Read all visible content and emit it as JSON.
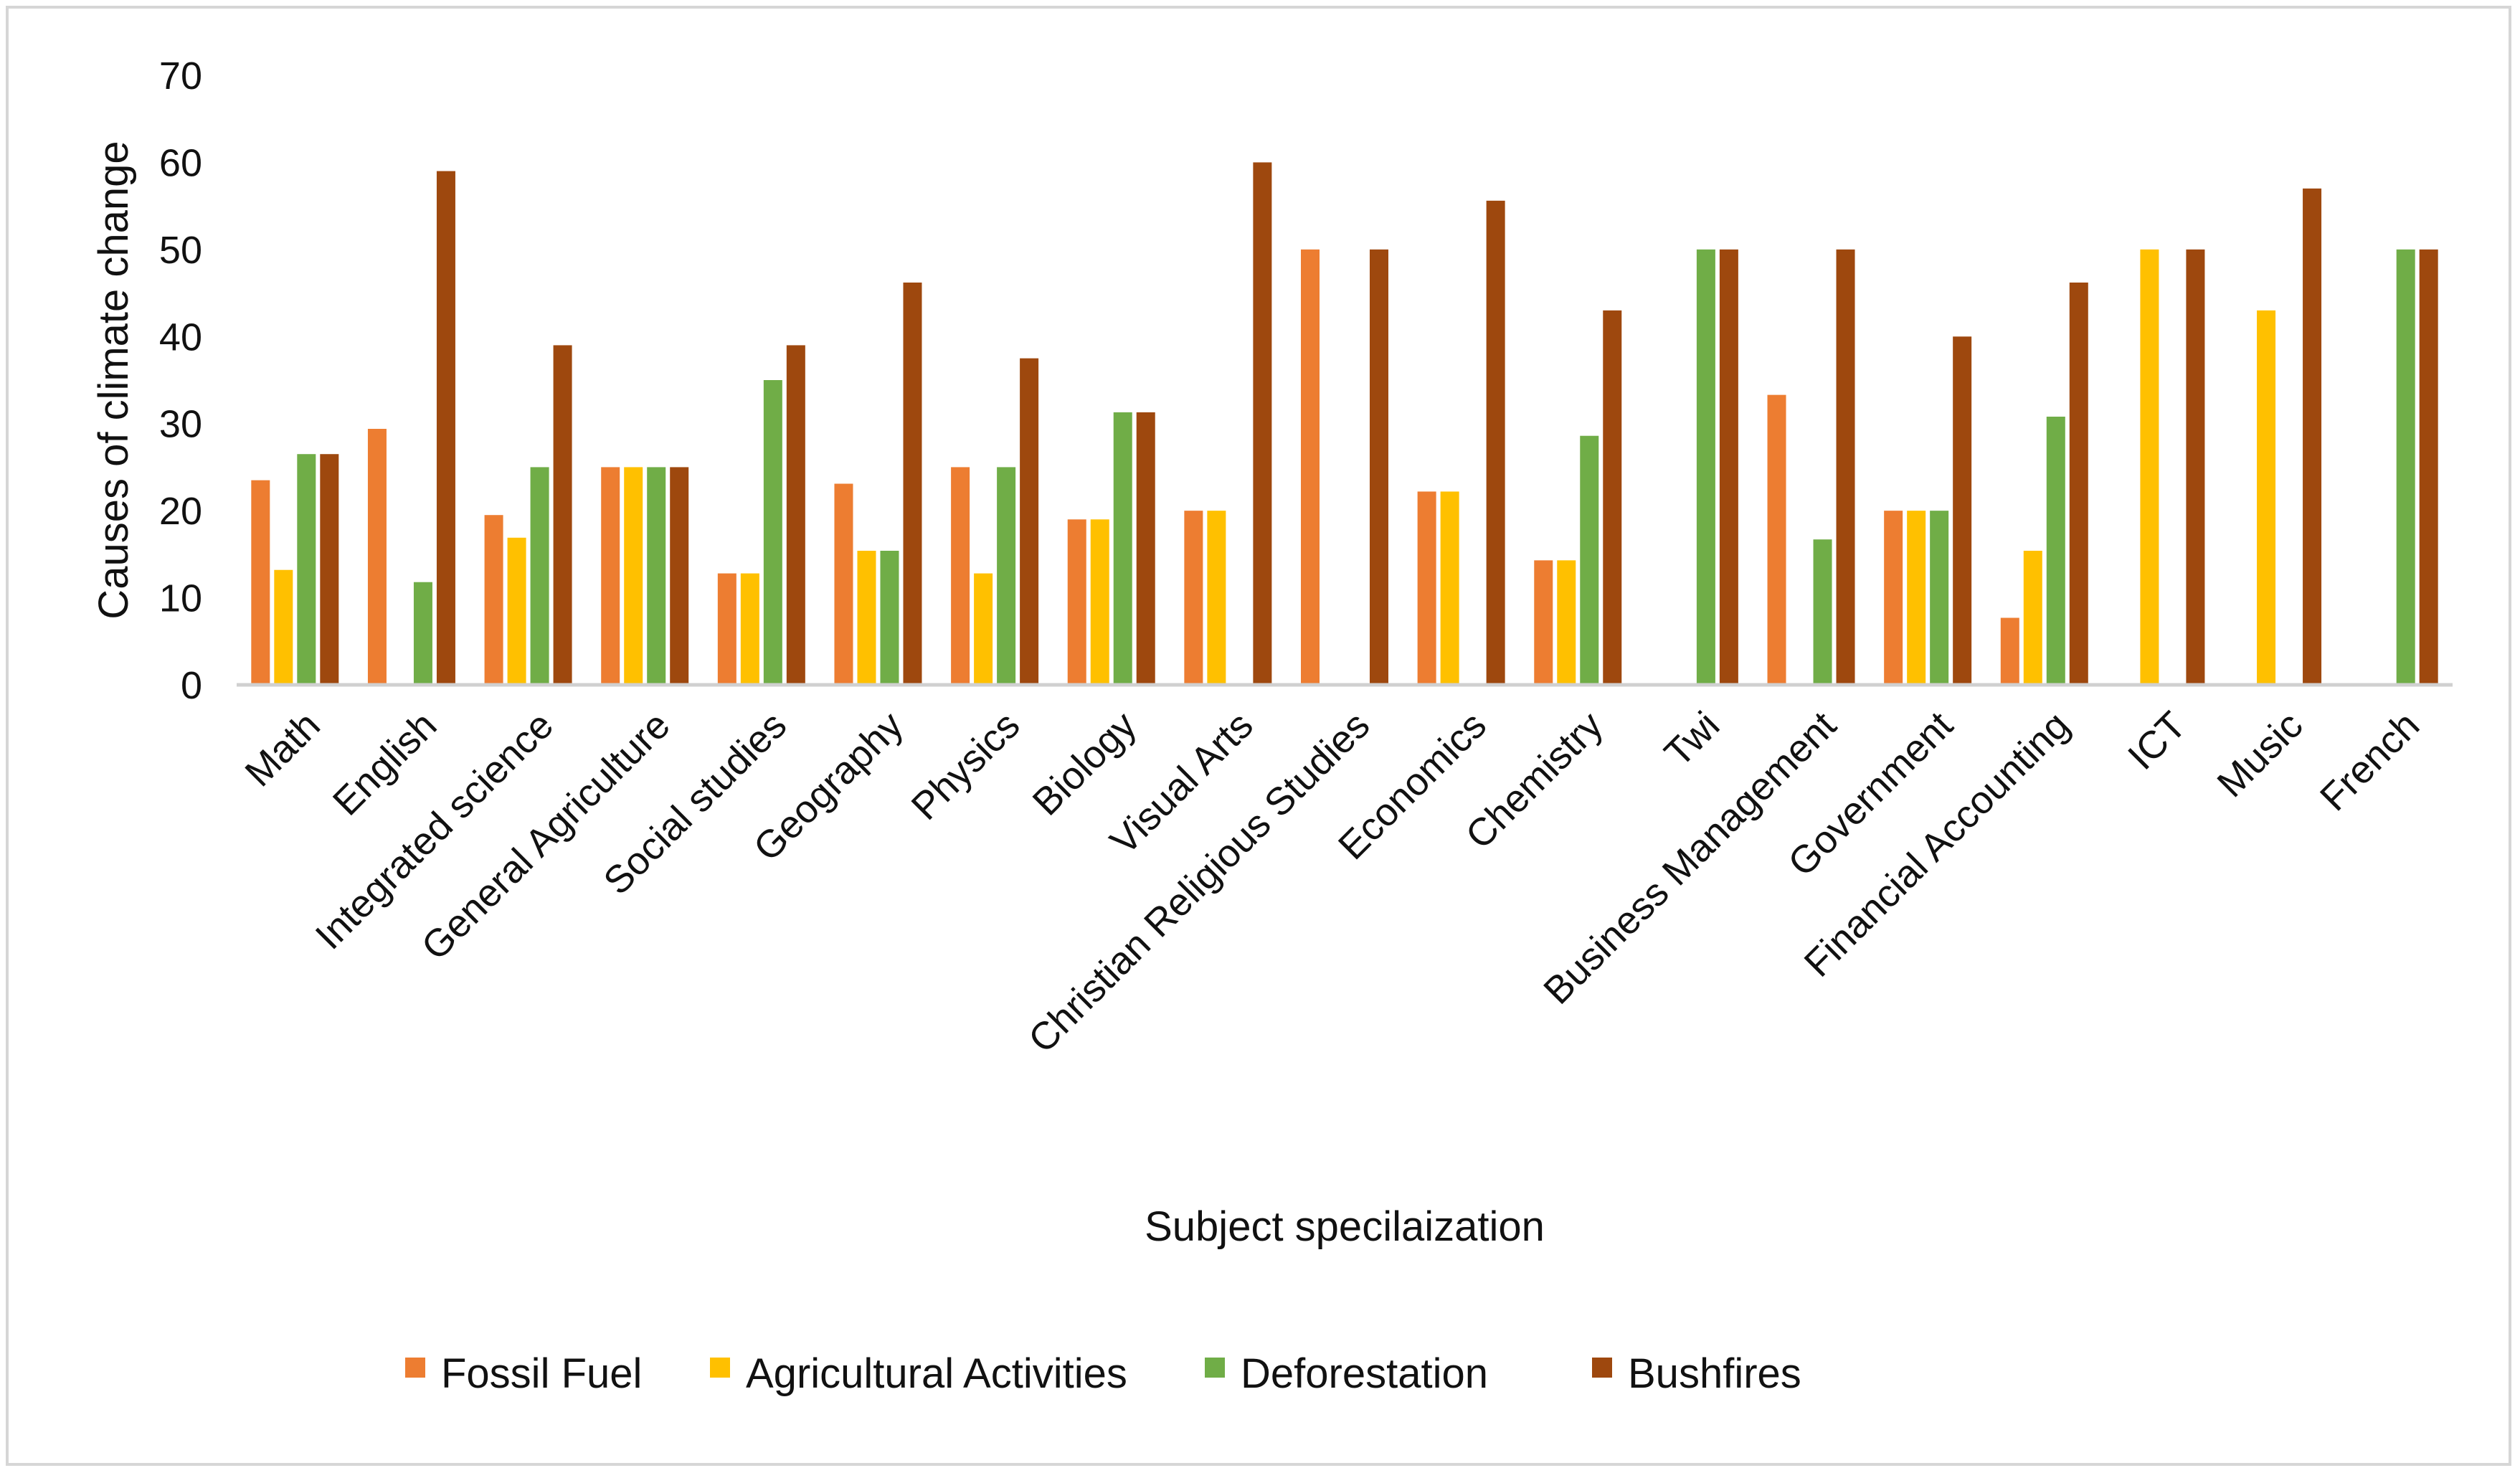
{
  "chart_data": {
    "type": "bar",
    "title": "",
    "xlabel": "Subject specilaization",
    "ylabel": "Causes of climate change",
    "ylim": [
      0,
      70
    ],
    "yticks": [
      0,
      10,
      20,
      30,
      40,
      50,
      60,
      70
    ],
    "grid": false,
    "legend_position": "bottom",
    "categories": [
      "Math",
      "English",
      "Integrated science",
      "General Agriculture",
      "Social studies",
      "Geography",
      "Physics",
      "Biology",
      "Visual Arts",
      "Christian Religious Studies",
      "Economics",
      "Chemistry",
      "Twi",
      "Business Management",
      "Government",
      "Financial Accounting",
      "ICT",
      "Music",
      "French"
    ],
    "series": [
      {
        "name": "Fossil Fuel",
        "color": "#ED7D31",
        "values": [
          23.5,
          29.4,
          19.5,
          25,
          12.8,
          23.1,
          25,
          19,
          20,
          50,
          22.2,
          14.3,
          0,
          33.3,
          20,
          7.7,
          0,
          0,
          0
        ]
      },
      {
        "name": "Agricultural Activities",
        "color": "#FFC000",
        "values": [
          13.2,
          0,
          16.9,
          25,
          12.8,
          15.4,
          12.8,
          19,
          20,
          0,
          22.2,
          14.3,
          0,
          0,
          20,
          15.4,
          50,
          43,
          0
        ]
      },
      {
        "name": "Deforestation",
        "color": "#70AD47",
        "values": [
          26.5,
          11.8,
          25,
          25,
          35,
          15.4,
          25,
          31.3,
          0,
          0,
          0,
          28.6,
          50,
          16.7,
          20,
          30.8,
          0,
          0,
          50
        ]
      },
      {
        "name": "Bushfires",
        "color": "#9E480E",
        "values": [
          26.5,
          59,
          39,
          25,
          39,
          46.2,
          37.5,
          31.3,
          60,
          50,
          55.6,
          43,
          50,
          50,
          40,
          46.2,
          50,
          57,
          50
        ]
      }
    ]
  }
}
